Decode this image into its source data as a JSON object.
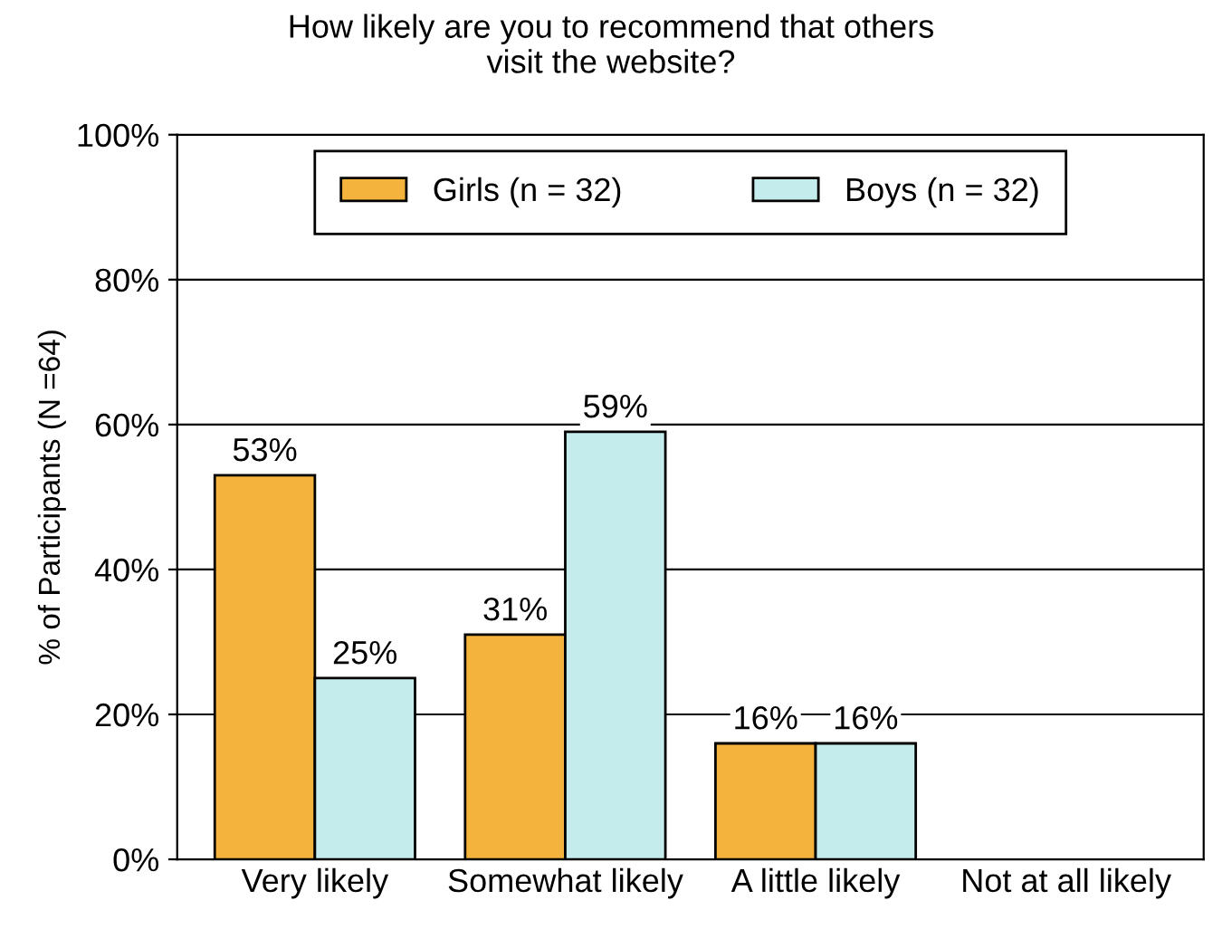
{
  "chart_data": {
    "type": "bar",
    "title": "How likely are you to recommend that others\nvisit the website?",
    "ylabel": "% of Participants (N =64)",
    "categories": [
      "Very likely",
      "Somewhat likely",
      "A little likely",
      "Not at all likely"
    ],
    "series": [
      {
        "name": "Girls (n = 32)",
        "color": "#f3b33d",
        "values": [
          53,
          31,
          16,
          0
        ],
        "value_labels": [
          "53%",
          "31%",
          "16%",
          null
        ]
      },
      {
        "name": "Boys (n = 32)",
        "color": "#c4ecec",
        "values": [
          25,
          59,
          16,
          0
        ],
        "value_labels": [
          "25%",
          "59%",
          "16%",
          null
        ]
      }
    ],
    "ylim": [
      0,
      100
    ],
    "yticks": [
      {
        "value": 0,
        "label": "0%"
      },
      {
        "value": 20,
        "label": "20%"
      },
      {
        "value": 40,
        "label": "40%"
      },
      {
        "value": 60,
        "label": "60%"
      },
      {
        "value": 80,
        "label": "80%"
      },
      {
        "value": 100,
        "label": "100%"
      }
    ],
    "grid": "y",
    "legend": "top"
  }
}
